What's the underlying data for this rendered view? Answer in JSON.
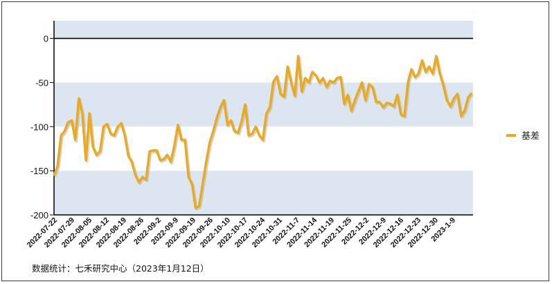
{
  "chart_data": {
    "type": "line",
    "title": "",
    "xlabel": "",
    "ylabel": "",
    "ylim": [
      -200,
      20
    ],
    "yticks": [
      0,
      -50,
      -100,
      -150,
      -200
    ],
    "xtick_labels": [
      "2022-07-22",
      "2022-07-29",
      "2022-08-05",
      "2022-08-12",
      "2022-08-19",
      "2022-08-26",
      "2022-09-2",
      "2022-09-9",
      "2022-09-19",
      "2022-09-26",
      "2022-10-10",
      "2022-10-17",
      "2022-10-24",
      "2022-10-31",
      "2022-11-7",
      "2022-11-14",
      "2022-11-19",
      "2022-11-25",
      "2022-12-2",
      "2022-12-9",
      "2022-12-16",
      "2022-12-23",
      "2022-12-30",
      "2023-1-9"
    ],
    "grid": "alternating horizontal bands",
    "legend": "right",
    "series": [
      {
        "name": "基差",
        "color": "#EBAA1E",
        "values": [
          -155,
          -145,
          -110,
          -105,
          -95,
          -93,
          -115,
          -68,
          -85,
          -138,
          -85,
          -123,
          -132,
          -128,
          -100,
          -97,
          -108,
          -110,
          -100,
          -96,
          -110,
          -133,
          -140,
          -155,
          -163,
          -157,
          -160,
          -128,
          -127,
          -127,
          -138,
          -137,
          -132,
          -140,
          -122,
          -98,
          -115,
          -115,
          -157,
          -165,
          -192,
          -190,
          -165,
          -140,
          -118,
          -105,
          -90,
          -78,
          -70,
          -98,
          -93,
          -105,
          -107,
          -94,
          -75,
          -110,
          -108,
          -100,
          -110,
          -115,
          -85,
          -78,
          -49,
          -43,
          -63,
          -66,
          -32,
          -50,
          -65,
          -20,
          -60,
          -45,
          -50,
          -38,
          -42,
          -50,
          -45,
          -55,
          -48,
          -50,
          -45,
          -44,
          -74,
          -64,
          -82,
          -70,
          -60,
          -50,
          -70,
          -52,
          -55,
          -72,
          -72,
          -78,
          -73,
          -74,
          -77,
          -64,
          -86,
          -88,
          -50,
          -35,
          -44,
          -40,
          -25,
          -38,
          -32,
          -40,
          -20,
          -40,
          -53,
          -70,
          -77,
          -68,
          -63,
          -88,
          -82,
          -67,
          -62
        ]
      }
    ]
  },
  "source_note": "数据统计：七禾研究中心（2023年1月12日）"
}
